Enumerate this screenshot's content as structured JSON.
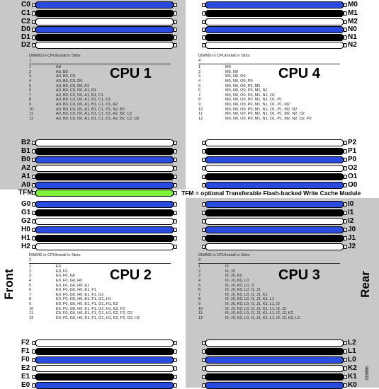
{
  "colors": {
    "blue": "#2a4be0",
    "black": "#000000",
    "white": "#ffffff",
    "green": "#7df03a",
    "panel": "#c8c8c8"
  },
  "front_label": "Front",
  "rear_label": "Rear",
  "tfm_note": "TFM = optional Transferable Flash-backed Write Cache Module",
  "figure_code": "333886",
  "cpus": [
    {
      "title": "CPU 1",
      "header": [
        "DIMMS in CPU 1",
        "Install in Slots"
      ],
      "rows": [
        [
          "1",
          "A0"
        ],
        [
          "2",
          "A0, B0"
        ],
        [
          "3",
          "A0, B0, C0"
        ],
        [
          "4",
          "A0, B0, C0, D0"
        ],
        [
          "5",
          "A0, B0, C0, D0, A1"
        ],
        [
          "6",
          "A0, B0, C0, D0, A1, B1"
        ],
        [
          "7",
          "A0, B0, C0, D0, A1, B1, C1"
        ],
        [
          "8",
          "A0, B0, C0, D0, A1, B1, C1, D1"
        ],
        [
          "9",
          "A0, B0, C0, D0, A1, B1, C1, D1, A2"
        ],
        [
          "10",
          "A0, B0, C0, D0, A1, B1, C1, D1, A2, B2"
        ],
        [
          "11",
          "A0, B0, C0, D0, A1, B1, C1, D1, A2, B2, C2"
        ],
        [
          "12",
          "A0, B0, C0, D0, A1, B1, C1, D1, A2, B2, C2, D2"
        ]
      ]
    },
    {
      "title": "CPU 4",
      "header": [
        "DIMMS in CPU 4",
        "Install in Slots"
      ],
      "rows": [
        [
          "1",
          "M0"
        ],
        [
          "2",
          "M0, N0"
        ],
        [
          "3",
          "M0, N0, O0"
        ],
        [
          "4",
          "M0, N0, O0, P0"
        ],
        [
          "5",
          "M0, N0, O0, P0, M1"
        ],
        [
          "6",
          "M0, N0, O0, P0, M1, N1"
        ],
        [
          "7",
          "M0, N0, O0, P0, M1, N1, O1"
        ],
        [
          "8",
          "M0, N0, O0, P0, M1, N1, O1, P1"
        ],
        [
          "9",
          "M0, N0, O0, P0, M1, N1, O1, P1, M2"
        ],
        [
          "10",
          "M0, N0, O0, P0, M1, N1, O1, P1, M2, N2"
        ],
        [
          "11",
          "M0, N0, O0, P0, M1, N1, O1, P1, M2, N2, O2"
        ],
        [
          "12",
          "M0, N0, O0, P0, M1, N1, O1, P1, M2, N2, O2, P2"
        ]
      ]
    },
    {
      "title": "CPU 2",
      "header": [
        "DIMMS in CPU 2",
        "Install in Slots"
      ],
      "rows": [
        [
          "1",
          "E0"
        ],
        [
          "2",
          "E0, F0"
        ],
        [
          "3",
          "E0, F0, G0"
        ],
        [
          "4",
          "E0, F0, G0, H0"
        ],
        [
          "5",
          "E0, F0, G0, H0, E1"
        ],
        [
          "6",
          "E0, F0, G0, H0, E1, F1"
        ],
        [
          "7",
          "E0, F0, G0, H0, E1, F1, G1"
        ],
        [
          "8",
          "E0, F0, G0, H0, E1, F1, G1, H1"
        ],
        [
          "9",
          "E0, F0, G0, H0, E1, F1, G1, H1, E2"
        ],
        [
          "10",
          "E0, F0, G0, H0, E1, F1, G1, H1, E2, F2"
        ],
        [
          "11",
          "E0, F0, G0, H0, E1, F1, G1, H1, E2, F2, G2"
        ],
        [
          "12",
          "E0, F0, G0, H0, E1, F1, G1, H1, E2, F2, G2, H2"
        ]
      ]
    },
    {
      "title": "CPU 3",
      "header": [
        "DIMMS in CPU 3",
        "Install in Slots"
      ],
      "rows": [
        [
          "1",
          "I0"
        ],
        [
          "2",
          "I0, J0"
        ],
        [
          "3",
          "I0, J0, K0"
        ],
        [
          "4",
          "I0, J0, K0, L0"
        ],
        [
          "5",
          "I0, J0, K0, L0, I1"
        ],
        [
          "6",
          "I0, J0, K0, L0, I1, J1"
        ],
        [
          "7",
          "I0, J0, K0, L0, I1, J1, K1"
        ],
        [
          "8",
          "I0, J0, K0, L0, I1, J1, K1, L1"
        ],
        [
          "9",
          "I0, J0, K0, L0, I1, J1, K1, L1, I2"
        ],
        [
          "10",
          "I0, J0, K0, L0, I1, J1, K1, L1, I2, J2"
        ],
        [
          "11",
          "I0, J0, K0, L0, I1, J1, K1, L1, I2, J2, K2"
        ],
        [
          "12",
          "I0, J0, K0, L0, I1, J1, K1, L1, I2, J2, K2, L2"
        ]
      ]
    }
  ],
  "slot_groups": [
    {
      "side": "left",
      "slots": [
        [
          "C0",
          "blue"
        ],
        [
          "C1",
          "black"
        ],
        [
          "C2",
          "white"
        ],
        [
          "D0",
          "blue"
        ],
        [
          "D1",
          "black"
        ],
        [
          "D2",
          "white"
        ]
      ]
    },
    {
      "side": "right",
      "slots": [
        [
          "M0",
          "blue"
        ],
        [
          "M1",
          "black"
        ],
        [
          "M2",
          "white"
        ],
        [
          "N0",
          "blue"
        ],
        [
          "N1",
          "black"
        ],
        [
          "N2",
          "white"
        ]
      ]
    },
    {
      "side": "left",
      "slots": [
        [
          "B2",
          "white"
        ],
        [
          "B1",
          "black"
        ],
        [
          "B0",
          "blue"
        ],
        [
          "A2",
          "white"
        ],
        [
          "A1",
          "black"
        ],
        [
          "A0",
          "blue"
        ]
      ]
    },
    {
      "side": "right",
      "slots": [
        [
          "P2",
          "white"
        ],
        [
          "P1",
          "black"
        ],
        [
          "P0",
          "blue"
        ],
        [
          "O2",
          "white"
        ],
        [
          "O1",
          "black"
        ],
        [
          "O0",
          "blue"
        ]
      ]
    },
    {
      "side": "left",
      "slots": [
        [
          "TFM",
          "green"
        ]
      ]
    },
    {
      "side": "left",
      "slots": [
        [
          "G0",
          "blue"
        ],
        [
          "G1",
          "black"
        ],
        [
          "G2",
          "white"
        ],
        [
          "H0",
          "blue"
        ],
        [
          "H1",
          "black"
        ],
        [
          "H2",
          "white"
        ]
      ]
    },
    {
      "side": "right",
      "slots": [
        [
          "I0",
          "blue"
        ],
        [
          "I1",
          "black"
        ],
        [
          "I2",
          "white"
        ],
        [
          "J0",
          "blue"
        ],
        [
          "J1",
          "black"
        ],
        [
          "J2",
          "white"
        ]
      ]
    },
    {
      "side": "left",
      "slots": [
        [
          "F2",
          "white"
        ],
        [
          "F1",
          "black"
        ],
        [
          "F0",
          "blue"
        ],
        [
          "E2",
          "white"
        ],
        [
          "E1",
          "black"
        ],
        [
          "E0",
          "blue"
        ]
      ]
    },
    {
      "side": "right",
      "slots": [
        [
          "L2",
          "white"
        ],
        [
          "L1",
          "black"
        ],
        [
          "L0",
          "blue"
        ],
        [
          "K2",
          "white"
        ],
        [
          "K1",
          "black"
        ],
        [
          "K0",
          "blue"
        ]
      ]
    }
  ]
}
